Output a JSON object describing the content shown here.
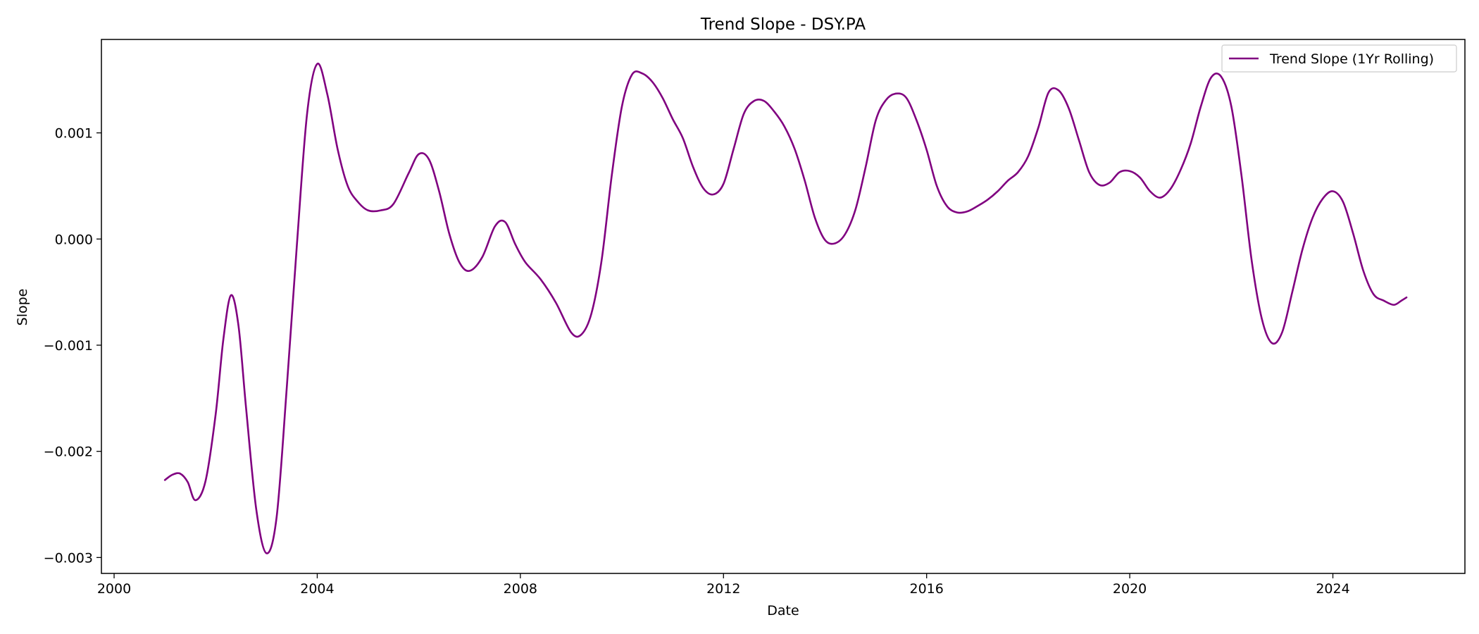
{
  "chart_data": {
    "type": "line",
    "title": "Trend Slope - DSY.PA",
    "xlabel": "Date",
    "ylabel": "Slope",
    "xlim": [
      1999.75,
      2026.6
    ],
    "ylim": [
      -0.00315,
      0.00188
    ],
    "x_ticks": [
      {
        "value": 2000,
        "label": "2000"
      },
      {
        "value": 2004,
        "label": "2004"
      },
      {
        "value": 2008,
        "label": "2008"
      },
      {
        "value": 2012,
        "label": "2012"
      },
      {
        "value": 2016,
        "label": "2016"
      },
      {
        "value": 2020,
        "label": "2020"
      },
      {
        "value": 2024,
        "label": "2024"
      }
    ],
    "y_ticks": [
      {
        "value": 0.001,
        "label": "0.001"
      },
      {
        "value": 0.0,
        "label": "0.000"
      },
      {
        "value": -0.001,
        "label": "−0.001"
      },
      {
        "value": -0.002,
        "label": "−0.002"
      },
      {
        "value": -0.003,
        "label": "−0.003"
      }
    ],
    "grid": false,
    "legend": {
      "position": "top-right"
    },
    "series": [
      {
        "name": "Trend Slope (1Yr Rolling)",
        "color": "#800080",
        "points": [
          [
            2001.0,
            -0.00227
          ],
          [
            2001.15,
            -0.00222
          ],
          [
            2001.3,
            -0.00221
          ],
          [
            2001.45,
            -0.00229
          ],
          [
            2001.6,
            -0.00246
          ],
          [
            2001.8,
            -0.00228
          ],
          [
            2002.0,
            -0.00165
          ],
          [
            2002.15,
            -0.00095
          ],
          [
            2002.3,
            -0.00053
          ],
          [
            2002.45,
            -0.00082
          ],
          [
            2002.6,
            -0.0016
          ],
          [
            2002.8,
            -0.00255
          ],
          [
            2003.0,
            -0.00296
          ],
          [
            2003.2,
            -0.00262
          ],
          [
            2003.4,
            -0.0014
          ],
          [
            2003.6,
            -5e-05
          ],
          [
            2003.8,
            0.00118
          ],
          [
            2004.0,
            0.00165
          ],
          [
            2004.2,
            0.00136
          ],
          [
            2004.4,
            0.00085
          ],
          [
            2004.6,
            0.0005
          ],
          [
            2004.8,
            0.00035
          ],
          [
            2005.0,
            0.00027
          ],
          [
            2005.25,
            0.00027
          ],
          [
            2005.5,
            0.00033
          ],
          [
            2005.8,
            0.00062
          ],
          [
            2006.0,
            0.0008
          ],
          [
            2006.2,
            0.00075
          ],
          [
            2006.4,
            0.00045
          ],
          [
            2006.6,
            5e-05
          ],
          [
            2006.8,
            -0.00022
          ],
          [
            2007.0,
            -0.0003
          ],
          [
            2007.25,
            -0.00017
          ],
          [
            2007.5,
            0.00012
          ],
          [
            2007.7,
            0.00016
          ],
          [
            2007.9,
            -5e-05
          ],
          [
            2008.1,
            -0.00022
          ],
          [
            2008.4,
            -0.00038
          ],
          [
            2008.7,
            -0.0006
          ],
          [
            2009.0,
            -0.00088
          ],
          [
            2009.2,
            -0.0009
          ],
          [
            2009.4,
            -0.0007
          ],
          [
            2009.6,
            -0.0002
          ],
          [
            2009.8,
            0.0006
          ],
          [
            2010.0,
            0.00125
          ],
          [
            2010.2,
            0.00155
          ],
          [
            2010.4,
            0.00156
          ],
          [
            2010.6,
            0.00148
          ],
          [
            2010.8,
            0.00133
          ],
          [
            2011.0,
            0.00113
          ],
          [
            2011.2,
            0.00095
          ],
          [
            2011.4,
            0.00068
          ],
          [
            2011.6,
            0.00048
          ],
          [
            2011.8,
            0.00042
          ],
          [
            2012.0,
            0.00052
          ],
          [
            2012.2,
            0.00085
          ],
          [
            2012.4,
            0.00118
          ],
          [
            2012.6,
            0.0013
          ],
          [
            2012.8,
            0.0013
          ],
          [
            2013.0,
            0.0012
          ],
          [
            2013.2,
            0.00106
          ],
          [
            2013.4,
            0.00085
          ],
          [
            2013.6,
            0.00055
          ],
          [
            2013.8,
            0.0002
          ],
          [
            2014.0,
            -1e-05
          ],
          [
            2014.2,
            -4e-05
          ],
          [
            2014.4,
            5e-05
          ],
          [
            2014.6,
            0.00028
          ],
          [
            2014.8,
            0.00068
          ],
          [
            2015.0,
            0.00112
          ],
          [
            2015.2,
            0.00131
          ],
          [
            2015.4,
            0.00137
          ],
          [
            2015.6,
            0.00133
          ],
          [
            2015.8,
            0.00112
          ],
          [
            2016.0,
            0.00084
          ],
          [
            2016.2,
            0.0005
          ],
          [
            2016.4,
            0.00031
          ],
          [
            2016.6,
            0.00025
          ],
          [
            2016.8,
            0.00026
          ],
          [
            2017.0,
            0.00031
          ],
          [
            2017.2,
            0.00037
          ],
          [
            2017.4,
            0.00045
          ],
          [
            2017.6,
            0.00055
          ],
          [
            2017.8,
            0.00063
          ],
          [
            2018.0,
            0.00078
          ],
          [
            2018.2,
            0.00105
          ],
          [
            2018.4,
            0.00138
          ],
          [
            2018.6,
            0.0014
          ],
          [
            2018.8,
            0.00123
          ],
          [
            2019.0,
            0.00093
          ],
          [
            2019.2,
            0.00063
          ],
          [
            2019.4,
            0.00051
          ],
          [
            2019.6,
            0.00053
          ],
          [
            2019.8,
            0.00063
          ],
          [
            2020.0,
            0.00064
          ],
          [
            2020.2,
            0.00058
          ],
          [
            2020.4,
            0.00045
          ],
          [
            2020.6,
            0.00039
          ],
          [
            2020.8,
            0.00047
          ],
          [
            2021.0,
            0.00065
          ],
          [
            2021.2,
            0.0009
          ],
          [
            2021.4,
            0.00125
          ],
          [
            2021.6,
            0.00152
          ],
          [
            2021.8,
            0.00153
          ],
          [
            2022.0,
            0.00125
          ],
          [
            2022.2,
            0.0006
          ],
          [
            2022.4,
            -0.0002
          ],
          [
            2022.6,
            -0.00075
          ],
          [
            2022.8,
            -0.00098
          ],
          [
            2023.0,
            -0.00088
          ],
          [
            2023.2,
            -0.0005
          ],
          [
            2023.4,
            -0.0001
          ],
          [
            2023.6,
            0.0002
          ],
          [
            2023.8,
            0.00038
          ],
          [
            2024.0,
            0.00045
          ],
          [
            2024.2,
            0.00035
          ],
          [
            2024.4,
            5e-05
          ],
          [
            2024.6,
            -0.0003
          ],
          [
            2024.8,
            -0.00052
          ],
          [
            2025.0,
            -0.00058
          ],
          [
            2025.2,
            -0.00062
          ],
          [
            2025.35,
            -0.00058
          ],
          [
            2025.45,
            -0.00055
          ]
        ]
      }
    ]
  }
}
